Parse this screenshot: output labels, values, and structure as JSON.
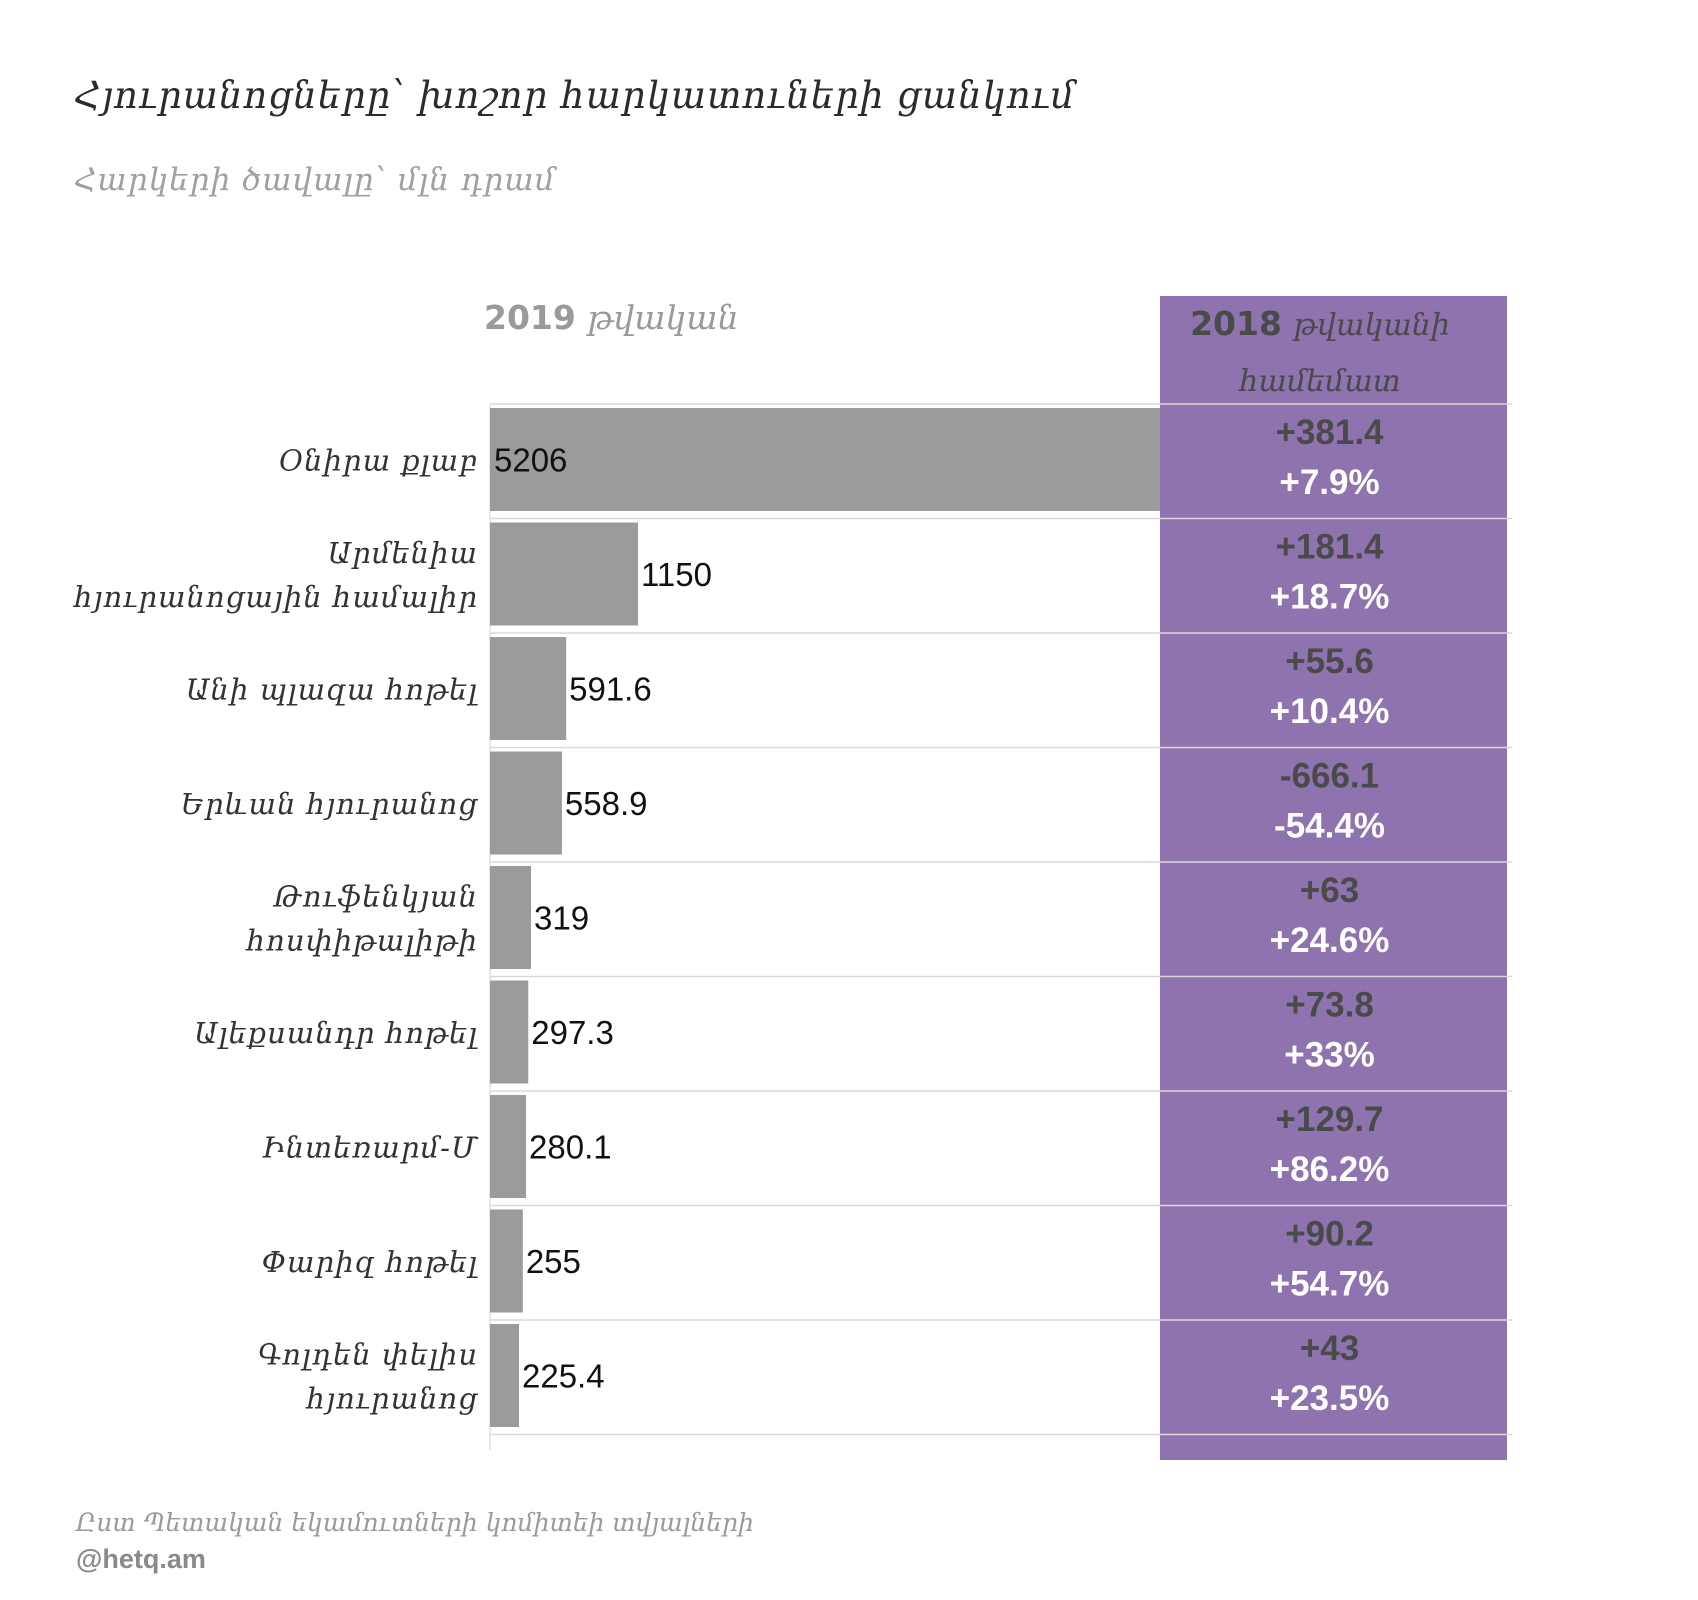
{
  "title": "Հյուրանոցները՝ խոշոր հարկատուների ցանկում",
  "subtitle": "Հարկերի ծավալը՝ մլն դրամ",
  "col_left": {
    "year": "2019",
    "label": "թվական"
  },
  "col_right": {
    "year": "2018",
    "label1": "թվականի",
    "label2": "համեմատ"
  },
  "source": "Ըստ Պետական եկամուտների կոմիտեի տվյալների",
  "credit": "@hetq.am",
  "colors": {
    "bar": "#9b9b9b",
    "panel": "#8e73ae",
    "delta_text": "#4a4a4a",
    "pct_text": "#ffffff",
    "grid": "#d9d9d9"
  },
  "chart_data": {
    "type": "bar",
    "orientation": "horizontal",
    "title": "Հյուրանոցները՝ խոշոր հարկատուների ցանկում",
    "subtitle": "Հարկերի ծավալը՝ մլն դրամ",
    "categories": [
      [
        "Օնիրա քլաբ"
      ],
      [
        "Արմենիա",
        "հյուրանոցային համալիր"
      ],
      [
        "Անի պլազա հոթել"
      ],
      [
        "Երևան հյուրանոց"
      ],
      [
        "Թուֆենկյան",
        "հոսփիթալիթի"
      ],
      [
        "Ալեքսանդր հոթել"
      ],
      [
        "Ինտեռարմ-Մ"
      ],
      [
        "Փարիզ հոթել"
      ],
      [
        "Գոլդեն փելիս",
        "հյուրանոց"
      ]
    ],
    "values": [
      5206,
      1150,
      591.6,
      558.9,
      319,
      297.3,
      280.1,
      255,
      225.4
    ],
    "value_labels": [
      "5206",
      "1150",
      "591.6",
      "558.9",
      "319",
      "297.3",
      "280.1",
      "255",
      "225.4"
    ],
    "change_abs": [
      "+381.4",
      "+181.4",
      "+55.6",
      "-666.1",
      "+63",
      "+73.8",
      "+129.7",
      "+90.2",
      "+43"
    ],
    "change_pct": [
      "+7.9%",
      "+18.7%",
      "+10.4%",
      "-54.4%",
      "+24.6%",
      "+33%",
      "+86.2%",
      "+54.7%",
      "+23.5%"
    ],
    "xlim": [
      0,
      5206
    ],
    "grid": false
  }
}
